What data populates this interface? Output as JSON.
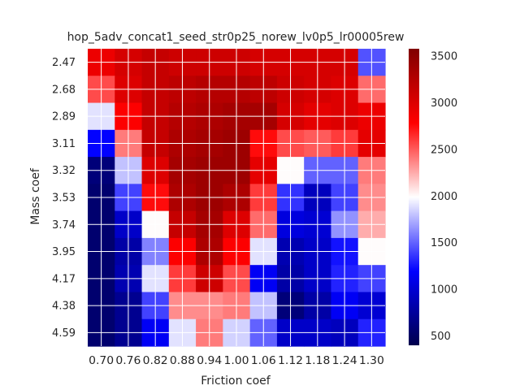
{
  "chart_data": {
    "type": "heatmap",
    "title": "hop_5adv_concat1_seed_str0p25_norew_lv0p5_lr00005rew",
    "xlabel": "Friction coef",
    "ylabel": "Mass coef",
    "x_ticks": [
      "0.70",
      "0.76",
      "0.82",
      "0.88",
      "0.94",
      "1.00",
      "1.06",
      "1.12",
      "1.18",
      "1.24",
      "1.30"
    ],
    "y_ticks": [
      "2.47",
      "2.68",
      "2.89",
      "3.11",
      "3.32",
      "3.53",
      "3.74",
      "3.95",
      "4.17",
      "4.38",
      "4.59"
    ],
    "colorbar": {
      "ticks": [
        "500",
        "1000",
        "1500",
        "2000",
        "2500",
        "3000",
        "3500"
      ],
      "tick_values": [
        500,
        1000,
        1500,
        2000,
        2500,
        3000,
        3500
      ],
      "range": [
        400,
        3580
      ],
      "colormap": "seismic"
    },
    "grid": true,
    "cells_shape": [
      22,
      22
    ],
    "values": [
      [
        2900,
        2900,
        3050,
        3050,
        3150,
        3150,
        3100,
        3100,
        3100,
        3100,
        3100,
        3100,
        3050,
        3050,
        3050,
        3050,
        3050,
        3050,
        3050,
        3050,
        1450,
        1450
      ],
      [
        2900,
        2900,
        3050,
        3050,
        3150,
        3150,
        3100,
        3100,
        3100,
        3100,
        3100,
        3100,
        3050,
        3050,
        3050,
        3050,
        3050,
        3050,
        3050,
        3050,
        1450,
        1450
      ],
      [
        2550,
        2550,
        3000,
        3000,
        3150,
        3150,
        3200,
        3200,
        3250,
        3250,
        3250,
        3250,
        3200,
        3200,
        3100,
        3100,
        3050,
        3050,
        3000,
        3000,
        2450,
        2450
      ],
      [
        2550,
        2550,
        3000,
        3000,
        3150,
        3150,
        3200,
        3200,
        3250,
        3250,
        3250,
        3250,
        3200,
        3200,
        3100,
        3100,
        3050,
        3050,
        3000,
        3000,
        2450,
        2450
      ],
      [
        1900,
        1900,
        2800,
        2800,
        3150,
        3150,
        3250,
        3250,
        3300,
        3300,
        3350,
        3350,
        3350,
        3350,
        3050,
        3050,
        2950,
        2950,
        3000,
        3000,
        2900,
        2900
      ],
      [
        1900,
        1900,
        2800,
        2800,
        3150,
        3150,
        3250,
        3250,
        3300,
        3300,
        3350,
        3350,
        3350,
        3350,
        3050,
        3050,
        2950,
        2950,
        3000,
        3000,
        2900,
        2900
      ],
      [
        1200,
        1200,
        2400,
        2400,
        3150,
        3150,
        3300,
        3300,
        3350,
        3350,
        3400,
        3400,
        2750,
        2750,
        2550,
        2550,
        2500,
        2500,
        2600,
        2600,
        2950,
        2950
      ],
      [
        1200,
        1200,
        2400,
        2400,
        3150,
        3150,
        3300,
        3300,
        3350,
        3350,
        3400,
        3400,
        2750,
        2750,
        2550,
        2550,
        2500,
        2500,
        2600,
        2600,
        2950,
        2950
      ],
      [
        600,
        600,
        1800,
        1800,
        3000,
        3000,
        3350,
        3350,
        3400,
        3400,
        3400,
        3400,
        2950,
        2950,
        2000,
        2000,
        1500,
        1500,
        1500,
        1500,
        2400,
        2400
      ],
      [
        600,
        600,
        1800,
        1800,
        3000,
        3000,
        3350,
        3350,
        3400,
        3400,
        3400,
        3400,
        2950,
        2950,
        2000,
        2000,
        1500,
        1500,
        1500,
        1500,
        2400,
        2400
      ],
      [
        550,
        550,
        1400,
        1400,
        2750,
        2750,
        3300,
        3300,
        3400,
        3400,
        3300,
        3300,
        2600,
        2600,
        1350,
        1350,
        900,
        900,
        1400,
        1400,
        2350,
        2350
      ],
      [
        550,
        550,
        1400,
        1400,
        2750,
        2750,
        3300,
        3300,
        3400,
        3400,
        3300,
        3300,
        2600,
        2600,
        1350,
        1350,
        900,
        900,
        1400,
        1400,
        2350,
        2350
      ],
      [
        550,
        550,
        950,
        950,
        2000,
        2000,
        3150,
        3150,
        3350,
        3350,
        3000,
        3000,
        2450,
        2450,
        1050,
        1050,
        1000,
        1000,
        1650,
        1650,
        2250,
        2250
      ],
      [
        550,
        550,
        950,
        950,
        2000,
        2000,
        3150,
        3150,
        3350,
        3350,
        3000,
        3000,
        2450,
        2450,
        1050,
        1050,
        1000,
        1000,
        1650,
        1650,
        2250,
        2250
      ],
      [
        550,
        550,
        800,
        800,
        1600,
        1600,
        2800,
        2800,
        3300,
        3300,
        2800,
        2800,
        1900,
        1900,
        850,
        850,
        950,
        950,
        1250,
        1250,
        2000,
        2000
      ],
      [
        550,
        550,
        800,
        800,
        1600,
        1600,
        2800,
        2800,
        3300,
        3300,
        2800,
        2800,
        1900,
        1900,
        850,
        850,
        950,
        950,
        1250,
        1250,
        2000,
        2000
      ],
      [
        550,
        550,
        850,
        850,
        1900,
        1900,
        2600,
        2600,
        3100,
        3100,
        2550,
        2550,
        1150,
        1150,
        800,
        800,
        950,
        950,
        1300,
        1300,
        1400,
        1400
      ],
      [
        550,
        550,
        850,
        850,
        1900,
        1900,
        2600,
        2600,
        3100,
        3100,
        2550,
        2550,
        1150,
        1150,
        800,
        800,
        950,
        950,
        1300,
        1300,
        1400,
        1400
      ],
      [
        550,
        550,
        700,
        700,
        1400,
        1400,
        2350,
        2350,
        2350,
        2350,
        2400,
        2400,
        1800,
        1800,
        600,
        600,
        800,
        800,
        1150,
        1150,
        1000,
        1000
      ],
      [
        550,
        550,
        700,
        700,
        1400,
        1400,
        2350,
        2350,
        2350,
        2350,
        2400,
        2400,
        1800,
        1800,
        600,
        600,
        800,
        800,
        1150,
        1150,
        1000,
        1000
      ],
      [
        550,
        550,
        700,
        700,
        1150,
        1150,
        1900,
        1900,
        2400,
        2400,
        1850,
        1850,
        1500,
        1500,
        950,
        950,
        950,
        950,
        900,
        900,
        1300,
        1300
      ],
      [
        550,
        550,
        700,
        700,
        1150,
        1150,
        1900,
        1900,
        2400,
        2400,
        1850,
        1850,
        1500,
        1500,
        950,
        950,
        950,
        950,
        900,
        900,
        1300,
        1300
      ]
    ]
  }
}
